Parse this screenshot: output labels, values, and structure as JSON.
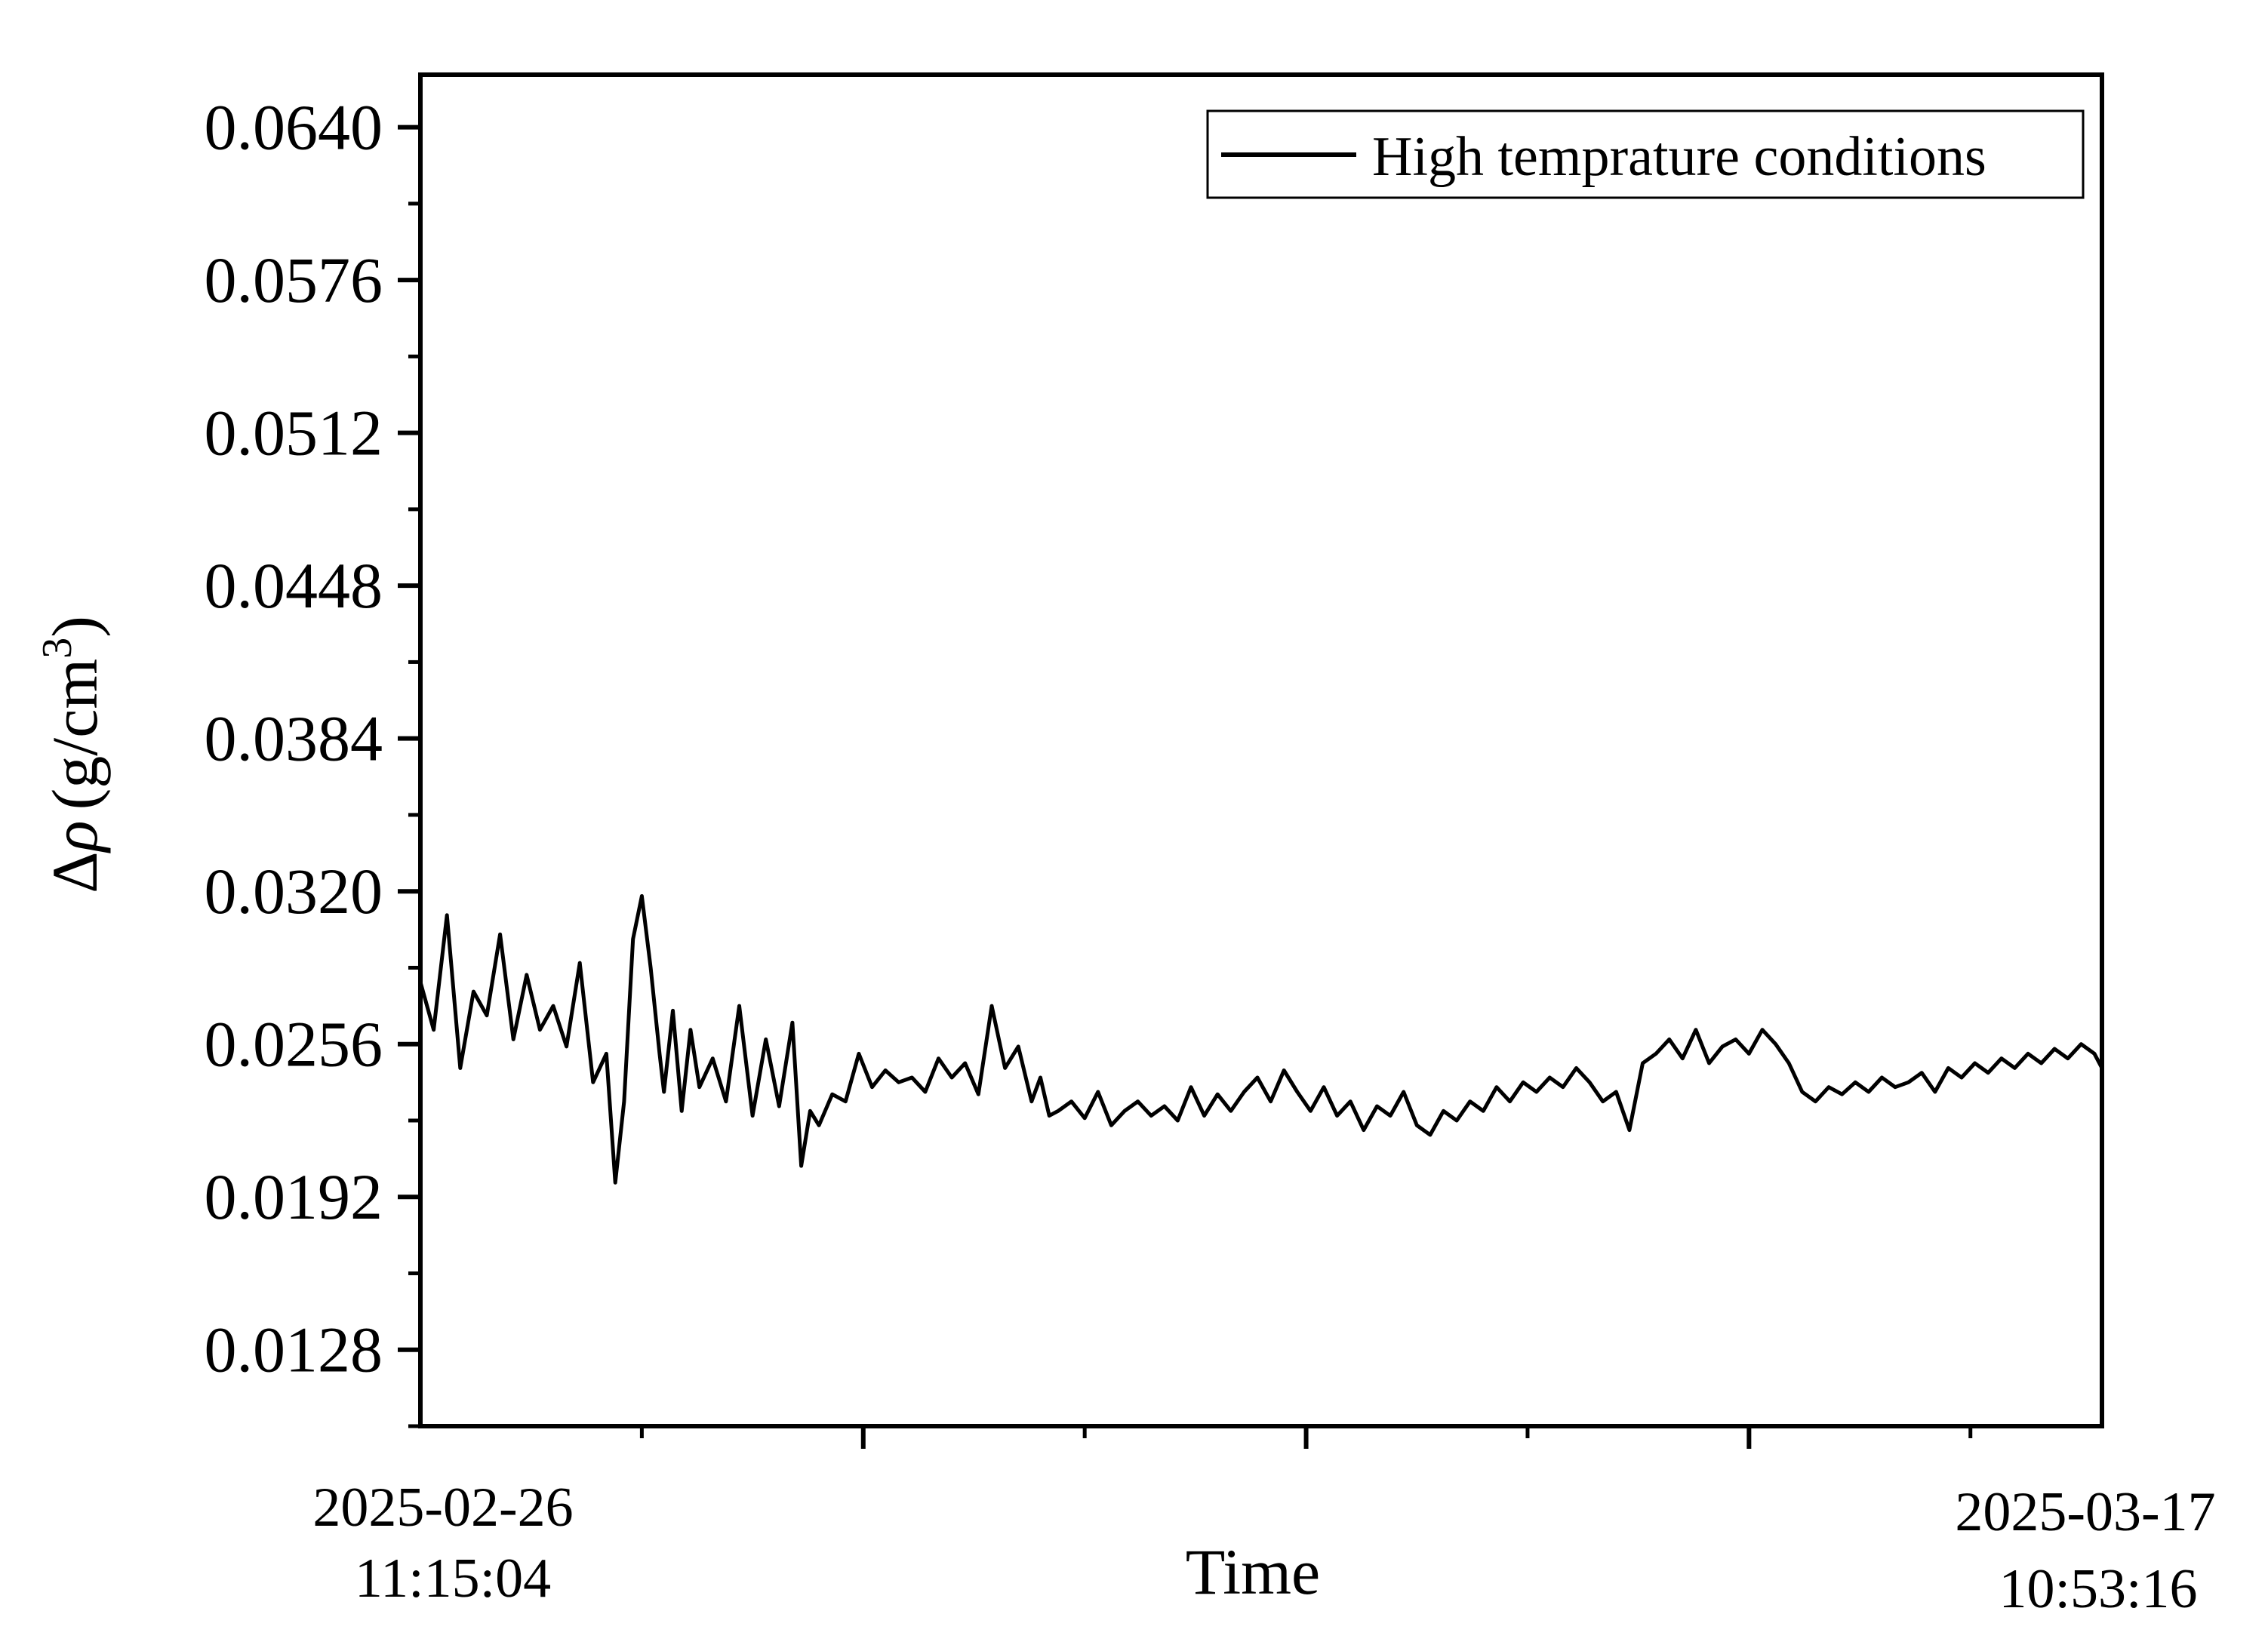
{
  "chart_data": {
    "type": "line",
    "xlabel": "Time",
    "ylabel": {
      "delta": "Δ",
      "rho": "ρ",
      "unit": "(g/cm",
      "exp": "3",
      "close": ")"
    },
    "xlim": [
      "2025-02-26 11:15:04",
      "2025-03-17 10:53:16"
    ],
    "xtick_labels": [
      {
        "date": "2025-02-26",
        "time": "11:15:04"
      },
      {
        "date": "2025-03-17",
        "time": "10:53:16"
      }
    ],
    "ylim": [
      0.0096,
      0.0662
    ],
    "yticks": [
      "0.0128",
      "0.0192",
      "0.0256",
      "0.0320",
      "0.0384",
      "0.0448",
      "0.0512",
      "0.0576",
      "0.0640"
    ],
    "grid": false,
    "legend": {
      "placement": "top-right",
      "entries": [
        "High temprature conditions"
      ]
    },
    "series": [
      {
        "name": "High temprature conditions",
        "color": "#000000",
        "x_unit": "days since 2025-02-26 11:15:04",
        "x": [
          0.0,
          0.15,
          0.3,
          0.45,
          0.6,
          0.75,
          0.9,
          1.05,
          1.2,
          1.35,
          1.5,
          1.65,
          1.8,
          1.95,
          2.1,
          2.2,
          2.3,
          2.4,
          2.5,
          2.6,
          2.7,
          2.75,
          2.85,
          2.95,
          3.05,
          3.15,
          3.3,
          3.45,
          3.6,
          3.75,
          3.9,
          4.05,
          4.2,
          4.3,
          4.4,
          4.5,
          4.65,
          4.8,
          4.95,
          5.1,
          5.25,
          5.4,
          5.55,
          5.7,
          5.85,
          6.0,
          6.15,
          6.3,
          6.45,
          6.6,
          6.75,
          6.9,
          7.0,
          7.1,
          7.2,
          7.35,
          7.5,
          7.65,
          7.8,
          7.95,
          8.1,
          8.25,
          8.4,
          8.55,
          8.7,
          8.85,
          9.0,
          9.15,
          9.3,
          9.45,
          9.6,
          9.75,
          9.9,
          10.05,
          10.2,
          10.35,
          10.5,
          10.65,
          10.8,
          10.95,
          11.1,
          11.25,
          11.4,
          11.55,
          11.7,
          11.85,
          12.0,
          12.15,
          12.3,
          12.45,
          12.6,
          12.75,
          12.9,
          13.05,
          13.2,
          13.35,
          13.5,
          13.65,
          13.8,
          13.95,
          14.1,
          14.25,
          14.4,
          14.55,
          14.7,
          14.85,
          15.0,
          15.15,
          15.3,
          15.45,
          15.6,
          15.75,
          15.9,
          16.05,
          16.2,
          16.35,
          16.5,
          16.65,
          16.8,
          16.95,
          17.1,
          17.25,
          17.4,
          17.55,
          17.7,
          17.85,
          18.0,
          18.15,
          18.3,
          18.45,
          18.6,
          18.75,
          18.9,
          18.985
        ],
        "y": [
          0.0282,
          0.0262,
          0.031,
          0.0246,
          0.0278,
          0.0268,
          0.0302,
          0.0258,
          0.0285,
          0.0262,
          0.0272,
          0.0255,
          0.029,
          0.024,
          0.0252,
          0.0198,
          0.0232,
          0.03,
          0.0318,
          0.0288,
          0.0252,
          0.0236,
          0.027,
          0.0228,
          0.0262,
          0.0238,
          0.025,
          0.0232,
          0.0272,
          0.0226,
          0.0258,
          0.023,
          0.0265,
          0.0205,
          0.0228,
          0.0222,
          0.0235,
          0.0232,
          0.0252,
          0.0238,
          0.0245,
          0.024,
          0.0242,
          0.0236,
          0.025,
          0.0242,
          0.0248,
          0.0235,
          0.0272,
          0.0246,
          0.0255,
          0.0232,
          0.0242,
          0.0226,
          0.0228,
          0.0232,
          0.0225,
          0.0236,
          0.0222,
          0.0228,
          0.0232,
          0.0226,
          0.023,
          0.0224,
          0.0238,
          0.0226,
          0.0235,
          0.0228,
          0.0236,
          0.0242,
          0.0232,
          0.0245,
          0.0236,
          0.0228,
          0.0238,
          0.0226,
          0.0232,
          0.022,
          0.023,
          0.0226,
          0.0236,
          0.0222,
          0.0218,
          0.0228,
          0.0224,
          0.0232,
          0.0228,
          0.0238,
          0.0232,
          0.024,
          0.0236,
          0.0242,
          0.0238,
          0.0246,
          0.024,
          0.0232,
          0.0236,
          0.022,
          0.0248,
          0.0252,
          0.0258,
          0.025,
          0.0262,
          0.0248,
          0.0255,
          0.0258,
          0.0252,
          0.0262,
          0.0256,
          0.0248,
          0.0236,
          0.0232,
          0.0238,
          0.0235,
          0.024,
          0.0236,
          0.0242,
          0.0238,
          0.024,
          0.0244,
          0.0236,
          0.0246,
          0.0242,
          0.0248,
          0.0244,
          0.025,
          0.0246,
          0.0252,
          0.0248,
          0.0254,
          0.025,
          0.0256,
          0.0252,
          0.0246
        ]
      }
    ]
  }
}
